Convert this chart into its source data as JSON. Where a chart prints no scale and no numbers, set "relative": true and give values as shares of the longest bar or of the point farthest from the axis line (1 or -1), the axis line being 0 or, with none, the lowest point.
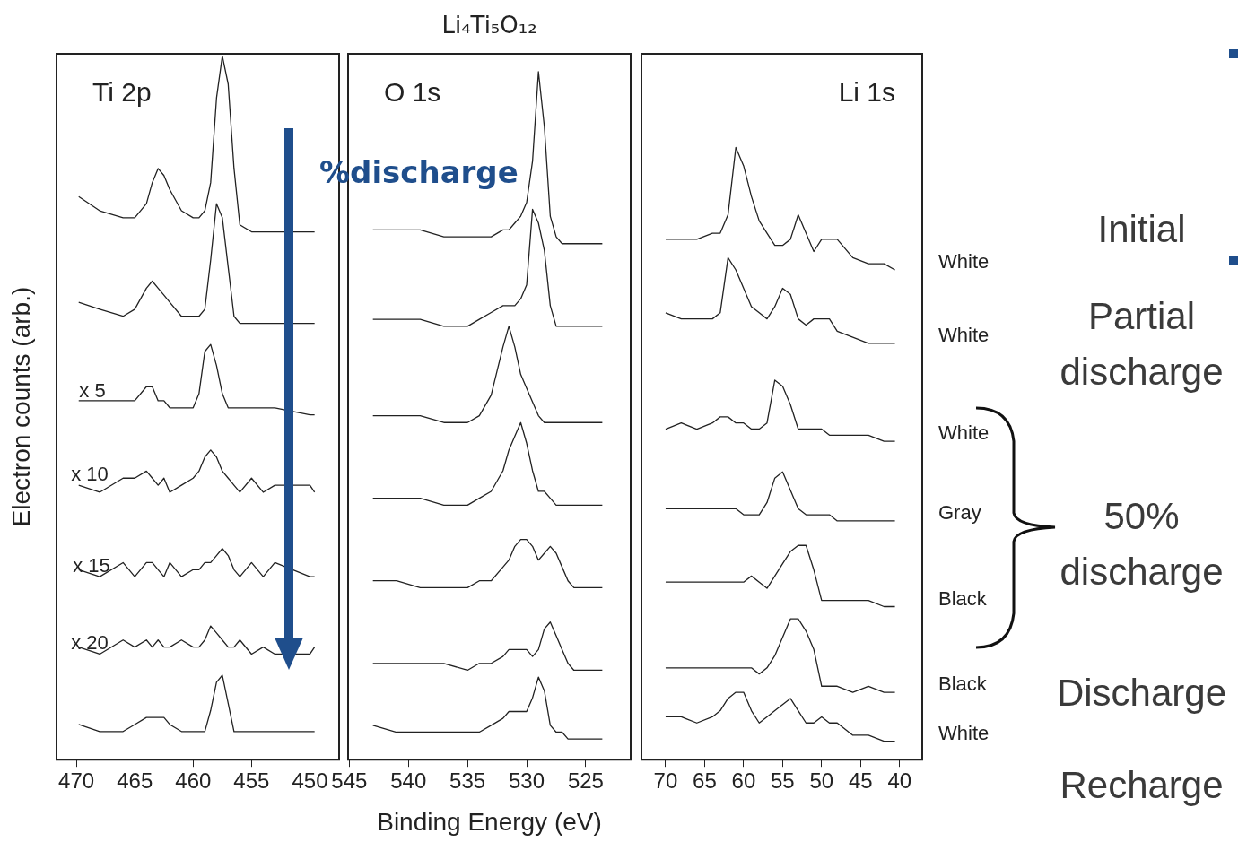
{
  "chart_data": [
    {
      "type": "line",
      "relative": true,
      "ylabel": "Electron counts (arb.)",
      "xlim": [
        471.7,
        447.5
      ],
      "xticks": [
        470,
        465,
        460,
        455,
        450
      ],
      "annotations": [
        "Ti 2p",
        "%discharge",
        "x 5",
        "x 10",
        "x 15",
        "x 20"
      ],
      "x": [
        469.8,
        468,
        466,
        465,
        464,
        463.5,
        463,
        462.5,
        462,
        461,
        460,
        459.5,
        459,
        458.5,
        458,
        457.5,
        457,
        456.5,
        456,
        455,
        454,
        453,
        450,
        449.6
      ],
      "series": [
        {
          "color": "#222222",
          "values": [
            0.8,
            0.78,
            0.77,
            0.77,
            0.79,
            0.82,
            0.84,
            0.83,
            0.81,
            0.78,
            0.77,
            0.77,
            0.78,
            0.82,
            0.94,
            1,
            0.96,
            0.84,
            0.76,
            0.75,
            0.75,
            0.75,
            0.75,
            0.75
          ]
        },
        {
          "color": "#222222",
          "values": [
            0.65,
            0.64,
            0.63,
            0.64,
            0.67,
            0.68,
            0.67,
            0.66,
            0.65,
            0.63,
            0.63,
            0.63,
            0.64,
            0.71,
            0.79,
            0.77,
            0.7,
            0.63,
            0.62,
            0.62,
            0.62,
            0.62,
            0.62,
            0.62
          ]
        },
        {
          "color": "#222222",
          "values": [
            0.51,
            0.51,
            0.51,
            0.51,
            0.53,
            0.53,
            0.51,
            0.51,
            0.5,
            0.5,
            0.5,
            0.52,
            0.58,
            0.59,
            0.56,
            0.52,
            0.5,
            0.5,
            0.5,
            0.5,
            0.5,
            0.5,
            0.49,
            0.49
          ]
        },
        {
          "color": "#222222",
          "values": [
            0.39,
            0.38,
            0.4,
            0.4,
            0.41,
            0.4,
            0.39,
            0.4,
            0.38,
            0.39,
            0.4,
            0.41,
            0.43,
            0.44,
            0.43,
            0.41,
            0.4,
            0.39,
            0.38,
            0.4,
            0.38,
            0.39,
            0.39,
            0.38
          ]
        },
        {
          "color": "#222222",
          "values": [
            0.27,
            0.26,
            0.28,
            0.26,
            0.28,
            0.28,
            0.27,
            0.26,
            0.28,
            0.26,
            0.27,
            0.27,
            0.28,
            0.28,
            0.29,
            0.3,
            0.29,
            0.27,
            0.26,
            0.28,
            0.26,
            0.28,
            0.26,
            0.26
          ]
        },
        {
          "color": "#222222",
          "values": [
            0.16,
            0.15,
            0.17,
            0.16,
            0.17,
            0.16,
            0.17,
            0.16,
            0.16,
            0.17,
            0.16,
            0.16,
            0.17,
            0.19,
            0.18,
            0.17,
            0.16,
            0.16,
            0.17,
            0.15,
            0.16,
            0.15,
            0.15,
            0.16
          ]
        },
        {
          "color": "#222222",
          "values": [
            0.05,
            0.04,
            0.04,
            0.05,
            0.06,
            0.06,
            0.06,
            0.06,
            0.05,
            0.04,
            0.04,
            0.04,
            0.04,
            0.07,
            0.11,
            0.12,
            0.08,
            0.04,
            0.04,
            0.04,
            0.04,
            0.04,
            0.04,
            0.04
          ]
        }
      ]
    },
    {
      "type": "line",
      "relative": true,
      "title": "Li₄Ti₅O₁₂",
      "xlabel": "Binding Energy (eV)",
      "xlim": [
        545.1,
        521.2
      ],
      "xticks": [
        545,
        540,
        535,
        530,
        525
      ],
      "annotations": [
        "O 1s"
      ],
      "x": [
        543,
        541,
        539,
        537,
        535,
        534,
        533,
        532,
        531.5,
        531,
        530.5,
        530,
        529.5,
        529,
        528.5,
        528,
        527.5,
        527,
        526.5,
        526,
        525,
        523.6
      ],
      "series": [
        {
          "color": "#222222",
          "values": [
            0.77,
            0.77,
            0.77,
            0.76,
            0.76,
            0.76,
            0.76,
            0.77,
            0.77,
            0.78,
            0.79,
            0.81,
            0.87,
            1,
            0.92,
            0.79,
            0.76,
            0.75,
            0.75,
            0.75,
            0.75,
            0.75
          ]
        },
        {
          "color": "#222222",
          "values": [
            0.64,
            0.64,
            0.64,
            0.63,
            0.63,
            0.64,
            0.65,
            0.66,
            0.66,
            0.66,
            0.67,
            0.69,
            0.8,
            0.78,
            0.74,
            0.66,
            0.63,
            0.63,
            0.63,
            0.63,
            0.63,
            0.63
          ]
        },
        {
          "color": "#222222",
          "values": [
            0.5,
            0.5,
            0.5,
            0.49,
            0.49,
            0.5,
            0.53,
            0.6,
            0.63,
            0.6,
            0.56,
            0.54,
            0.52,
            0.5,
            0.49,
            0.49,
            0.49,
            0.49,
            0.49,
            0.49,
            0.49,
            0.49
          ]
        },
        {
          "color": "#222222",
          "values": [
            0.38,
            0.38,
            0.38,
            0.37,
            0.37,
            0.38,
            0.39,
            0.42,
            0.45,
            0.47,
            0.49,
            0.46,
            0.42,
            0.39,
            0.39,
            0.38,
            0.37,
            0.37,
            0.37,
            0.37,
            0.37,
            0.37
          ]
        },
        {
          "color": "#222222",
          "values": [
            0.26,
            0.26,
            0.25,
            0.25,
            0.25,
            0.26,
            0.26,
            0.28,
            0.29,
            0.31,
            0.32,
            0.32,
            0.31,
            0.29,
            0.3,
            0.31,
            0.3,
            0.28,
            0.26,
            0.25,
            0.25,
            0.25
          ]
        },
        {
          "color": "#222222",
          "values": [
            0.14,
            0.14,
            0.14,
            0.14,
            0.13,
            0.14,
            0.14,
            0.15,
            0.16,
            0.16,
            0.16,
            0.16,
            0.15,
            0.16,
            0.19,
            0.2,
            0.18,
            0.16,
            0.14,
            0.13,
            0.13,
            0.13
          ]
        },
        {
          "color": "#222222",
          "values": [
            0.05,
            0.04,
            0.04,
            0.04,
            0.04,
            0.04,
            0.05,
            0.06,
            0.07,
            0.07,
            0.07,
            0.07,
            0.09,
            0.12,
            0.1,
            0.05,
            0.04,
            0.04,
            0.03,
            0.03,
            0.03,
            0.03
          ]
        }
      ]
    },
    {
      "type": "line",
      "relative": true,
      "xlim": [
        73.1,
        37.1
      ],
      "xticks": [
        70,
        65,
        60,
        55,
        50,
        45,
        40
      ],
      "annotations": [
        "Li 1s",
        "Initial",
        "Partial discharge",
        "50% discharge",
        "Discharge",
        "Recharge"
      ],
      "x": [
        70,
        68,
        66,
        64,
        63,
        62,
        61,
        60,
        59,
        58,
        57,
        56,
        55,
        54,
        53,
        52,
        51,
        50,
        49,
        48,
        46,
        44,
        42,
        40.6
      ],
      "series": [
        {
          "name": "White",
          "color": "#222222",
          "values": [
            0.85,
            0.85,
            0.85,
            0.86,
            0.86,
            0.89,
            1,
            0.97,
            0.92,
            0.88,
            0.86,
            0.84,
            0.84,
            0.85,
            0.89,
            0.86,
            0.83,
            0.85,
            0.85,
            0.85,
            0.82,
            0.81,
            0.81,
            0.8
          ]
        },
        {
          "name": "White",
          "color": "#222222",
          "values": [
            0.73,
            0.72,
            0.72,
            0.72,
            0.73,
            0.82,
            0.8,
            0.77,
            0.74,
            0.73,
            0.72,
            0.74,
            0.77,
            0.76,
            0.72,
            0.71,
            0.72,
            0.72,
            0.72,
            0.7,
            0.69,
            0.68,
            0.68,
            0.68
          ]
        },
        {
          "name": "White",
          "color": "#222222",
          "values": [
            0.54,
            0.55,
            0.54,
            0.55,
            0.56,
            0.56,
            0.55,
            0.55,
            0.54,
            0.54,
            0.55,
            0.62,
            0.61,
            0.58,
            0.54,
            0.54,
            0.54,
            0.54,
            0.53,
            0.53,
            0.53,
            0.53,
            0.52,
            0.52
          ]
        },
        {
          "name": "Gray",
          "color": "#222222",
          "values": [
            0.41,
            0.41,
            0.41,
            0.41,
            0.41,
            0.41,
            0.41,
            0.4,
            0.4,
            0.4,
            0.42,
            0.46,
            0.47,
            0.44,
            0.41,
            0.4,
            0.4,
            0.4,
            0.4,
            0.39,
            0.39,
            0.39,
            0.39,
            0.39
          ]
        },
        {
          "name": "Black",
          "color": "#222222",
          "values": [
            0.29,
            0.29,
            0.29,
            0.29,
            0.29,
            0.29,
            0.29,
            0.29,
            0.3,
            0.29,
            0.28,
            0.3,
            0.32,
            0.34,
            0.35,
            0.35,
            0.31,
            0.26,
            0.26,
            0.26,
            0.26,
            0.26,
            0.25,
            0.25
          ]
        },
        {
          "name": "Black",
          "color": "#222222",
          "values": [
            0.15,
            0.15,
            0.15,
            0.15,
            0.15,
            0.15,
            0.15,
            0.15,
            0.15,
            0.14,
            0.15,
            0.17,
            0.2,
            0.23,
            0.23,
            0.21,
            0.18,
            0.12,
            0.12,
            0.12,
            0.11,
            0.12,
            0.11,
            0.11
          ]
        },
        {
          "name": "White",
          "color": "#222222",
          "values": [
            0.07,
            0.07,
            0.06,
            0.07,
            0.08,
            0.1,
            0.11,
            0.11,
            0.08,
            0.06,
            0.07,
            0.08,
            0.09,
            0.1,
            0.08,
            0.06,
            0.06,
            0.07,
            0.06,
            0.06,
            0.04,
            0.04,
            0.03,
            0.03
          ]
        }
      ]
    }
  ]
}
